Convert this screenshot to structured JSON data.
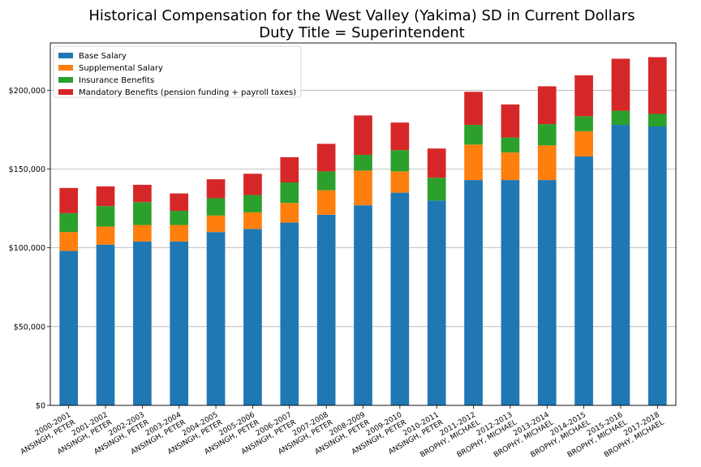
{
  "chart_data": {
    "type": "bar",
    "stacked": true,
    "title_line1": "Historical Compensation for the West Valley (Yakima) SD in Current Dollars",
    "title_line2": "Duty Title = Superintendent",
    "xlabel": "",
    "ylabel": "",
    "ylim": [
      0,
      230000
    ],
    "yticks": [
      0,
      50000,
      100000,
      150000,
      200000
    ],
    "ytick_labels": [
      "$0",
      "$50,000",
      "$100,000",
      "$150,000",
      "$200,000"
    ],
    "grid": "horizontal",
    "legend_position": "top-left",
    "categories": [
      {
        "year": "2000-2001",
        "name": "ANSINGH, PETER"
      },
      {
        "year": "2001-2002",
        "name": "ANSINGH, PETER"
      },
      {
        "year": "2002-2003",
        "name": "ANSINGH, PETER"
      },
      {
        "year": "2003-2004",
        "name": "ANSINGH, PETER"
      },
      {
        "year": "2004-2005",
        "name": "ANSINGH, PETER"
      },
      {
        "year": "2005-2006",
        "name": "ANSINGH, PETER"
      },
      {
        "year": "2006-2007",
        "name": "ANSINGH, PETER"
      },
      {
        "year": "2007-2008",
        "name": "ANSINGH, PETER"
      },
      {
        "year": "2008-2009",
        "name": "ANSINGH, PETER"
      },
      {
        "year": "2009-2010",
        "name": "ANSINGH, PETER"
      },
      {
        "year": "2010-2011",
        "name": "ANSINGH, PETER"
      },
      {
        "year": "2011-2012",
        "name": "BROPHY, MICHAEL"
      },
      {
        "year": "2012-2013",
        "name": "BROPHY, MICHAEL"
      },
      {
        "year": "2013-2014",
        "name": "BROPHY, MICHAEL"
      },
      {
        "year": "2014-2015",
        "name": "BROPHY, MICHAEL"
      },
      {
        "year": "2015-2016",
        "name": "BROPHY, MICHAEL"
      },
      {
        "year": "2017-2018",
        "name": "BROPHY, MICHAEL"
      }
    ],
    "series": [
      {
        "name": "Base Salary",
        "color": "#1f77b4",
        "values": [
          98000,
          102000,
          104000,
          104000,
          110000,
          112000,
          116000,
          121000,
          127000,
          135000,
          130000,
          143000,
          143000,
          143000,
          158000,
          178000,
          177000
        ]
      },
      {
        "name": "Supplemental Salary",
        "color": "#ff7f0e",
        "values": [
          12000,
          11500,
          10500,
          10500,
          10500,
          10500,
          12500,
          15500,
          22000,
          13500,
          0,
          22500,
          17500,
          22000,
          16000,
          0,
          0
        ]
      },
      {
        "name": "Insurance Benefits",
        "color": "#2ca02c",
        "values": [
          12000,
          13000,
          14500,
          9000,
          11000,
          11000,
          13000,
          12000,
          10000,
          13500,
          14500,
          12500,
          9500,
          13500,
          9500,
          9000,
          8000
        ]
      },
      {
        "name": "Mandatory Benefits (pension funding + payroll taxes)",
        "color": "#d62728",
        "values": [
          16000,
          12500,
          11000,
          11000,
          12000,
          13500,
          16000,
          17500,
          25000,
          17500,
          18500,
          21000,
          21000,
          24000,
          26000,
          33000,
          36000
        ]
      }
    ]
  }
}
